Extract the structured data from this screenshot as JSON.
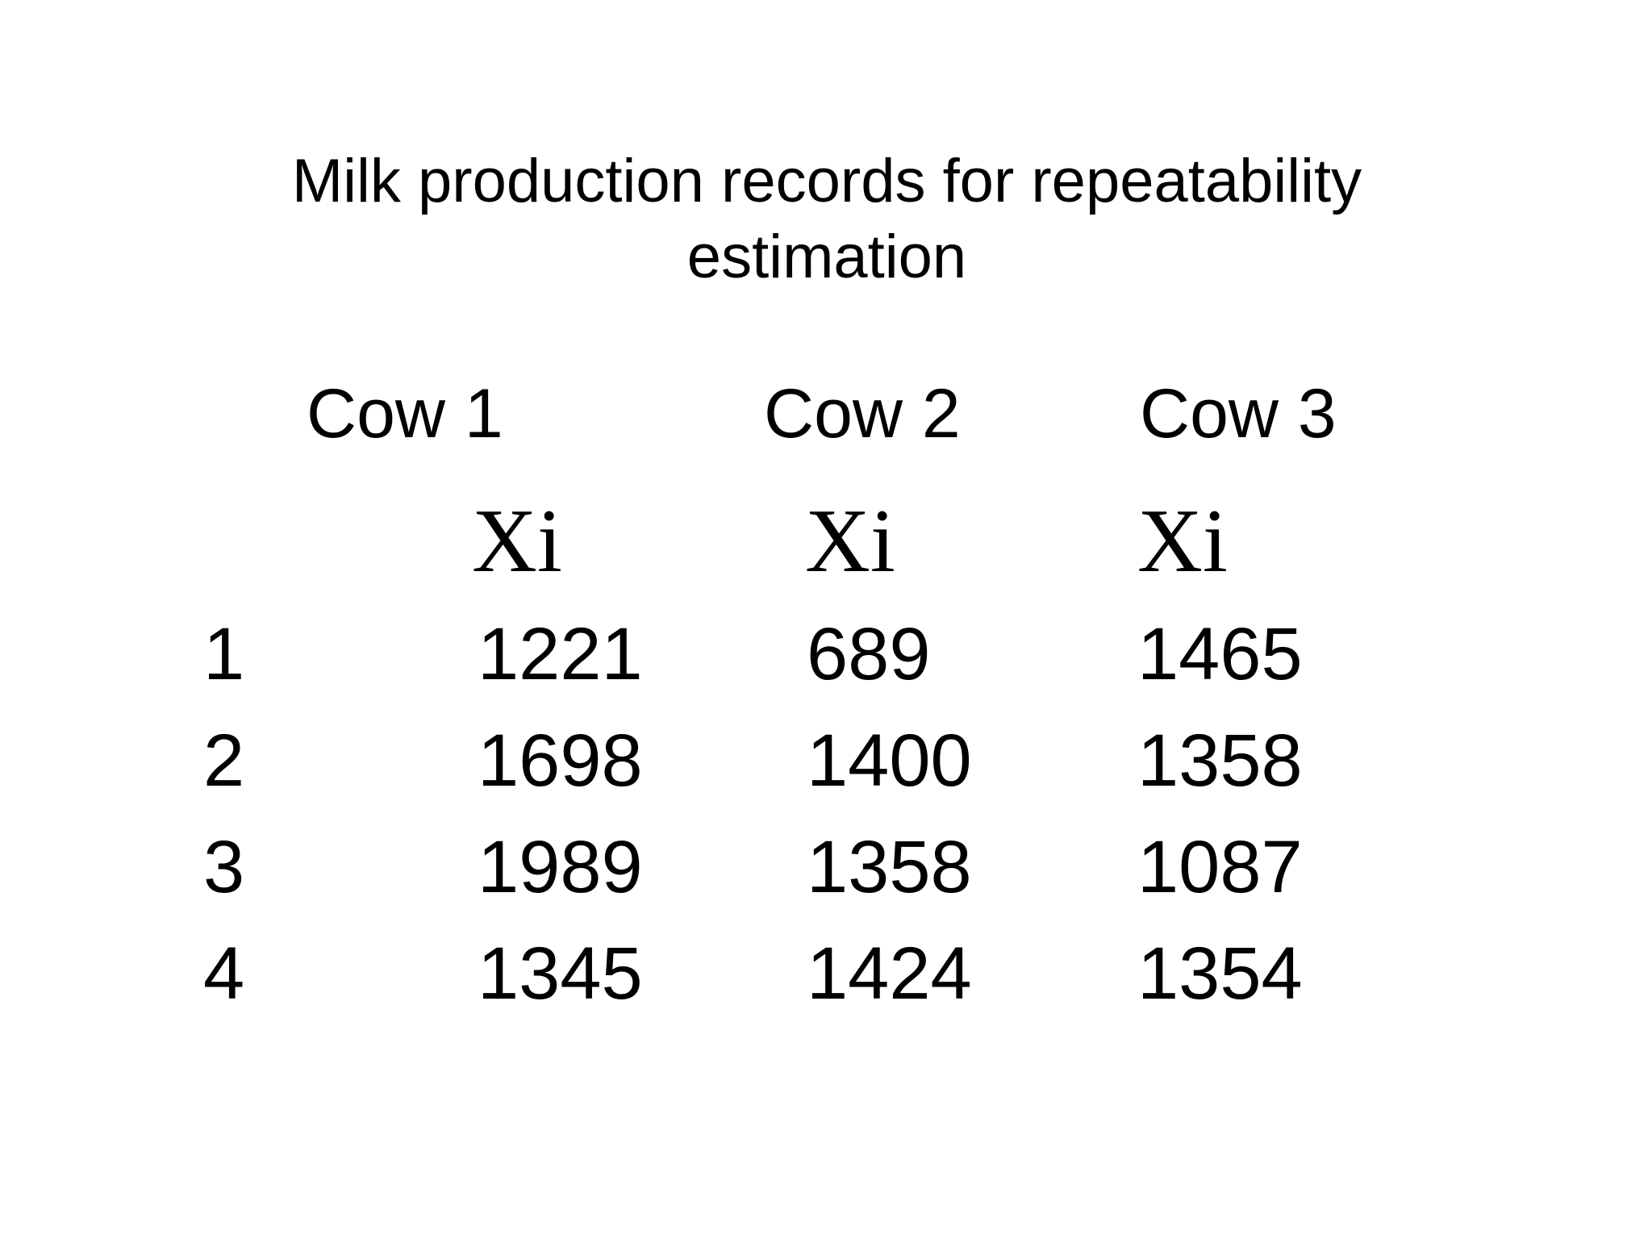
{
  "title": {
    "line1": "Milk production records for repeatability",
    "line2": "estimation"
  },
  "table": {
    "cow_headers": [
      "Cow 1",
      "Cow 2",
      "Cow 3"
    ],
    "subheaders": [
      "Xi",
      "Xi",
      "Xi"
    ],
    "rows": [
      {
        "label": "1",
        "values": [
          "1221",
          "689",
          "1465"
        ]
      },
      {
        "label": "2",
        "values": [
          "1698",
          "1400",
          "1358"
        ]
      },
      {
        "label": "3",
        "values": [
          "1989",
          "1358",
          "1087"
        ]
      },
      {
        "label": "4",
        "values": [
          "1345",
          "1424",
          "1354"
        ]
      }
    ]
  }
}
